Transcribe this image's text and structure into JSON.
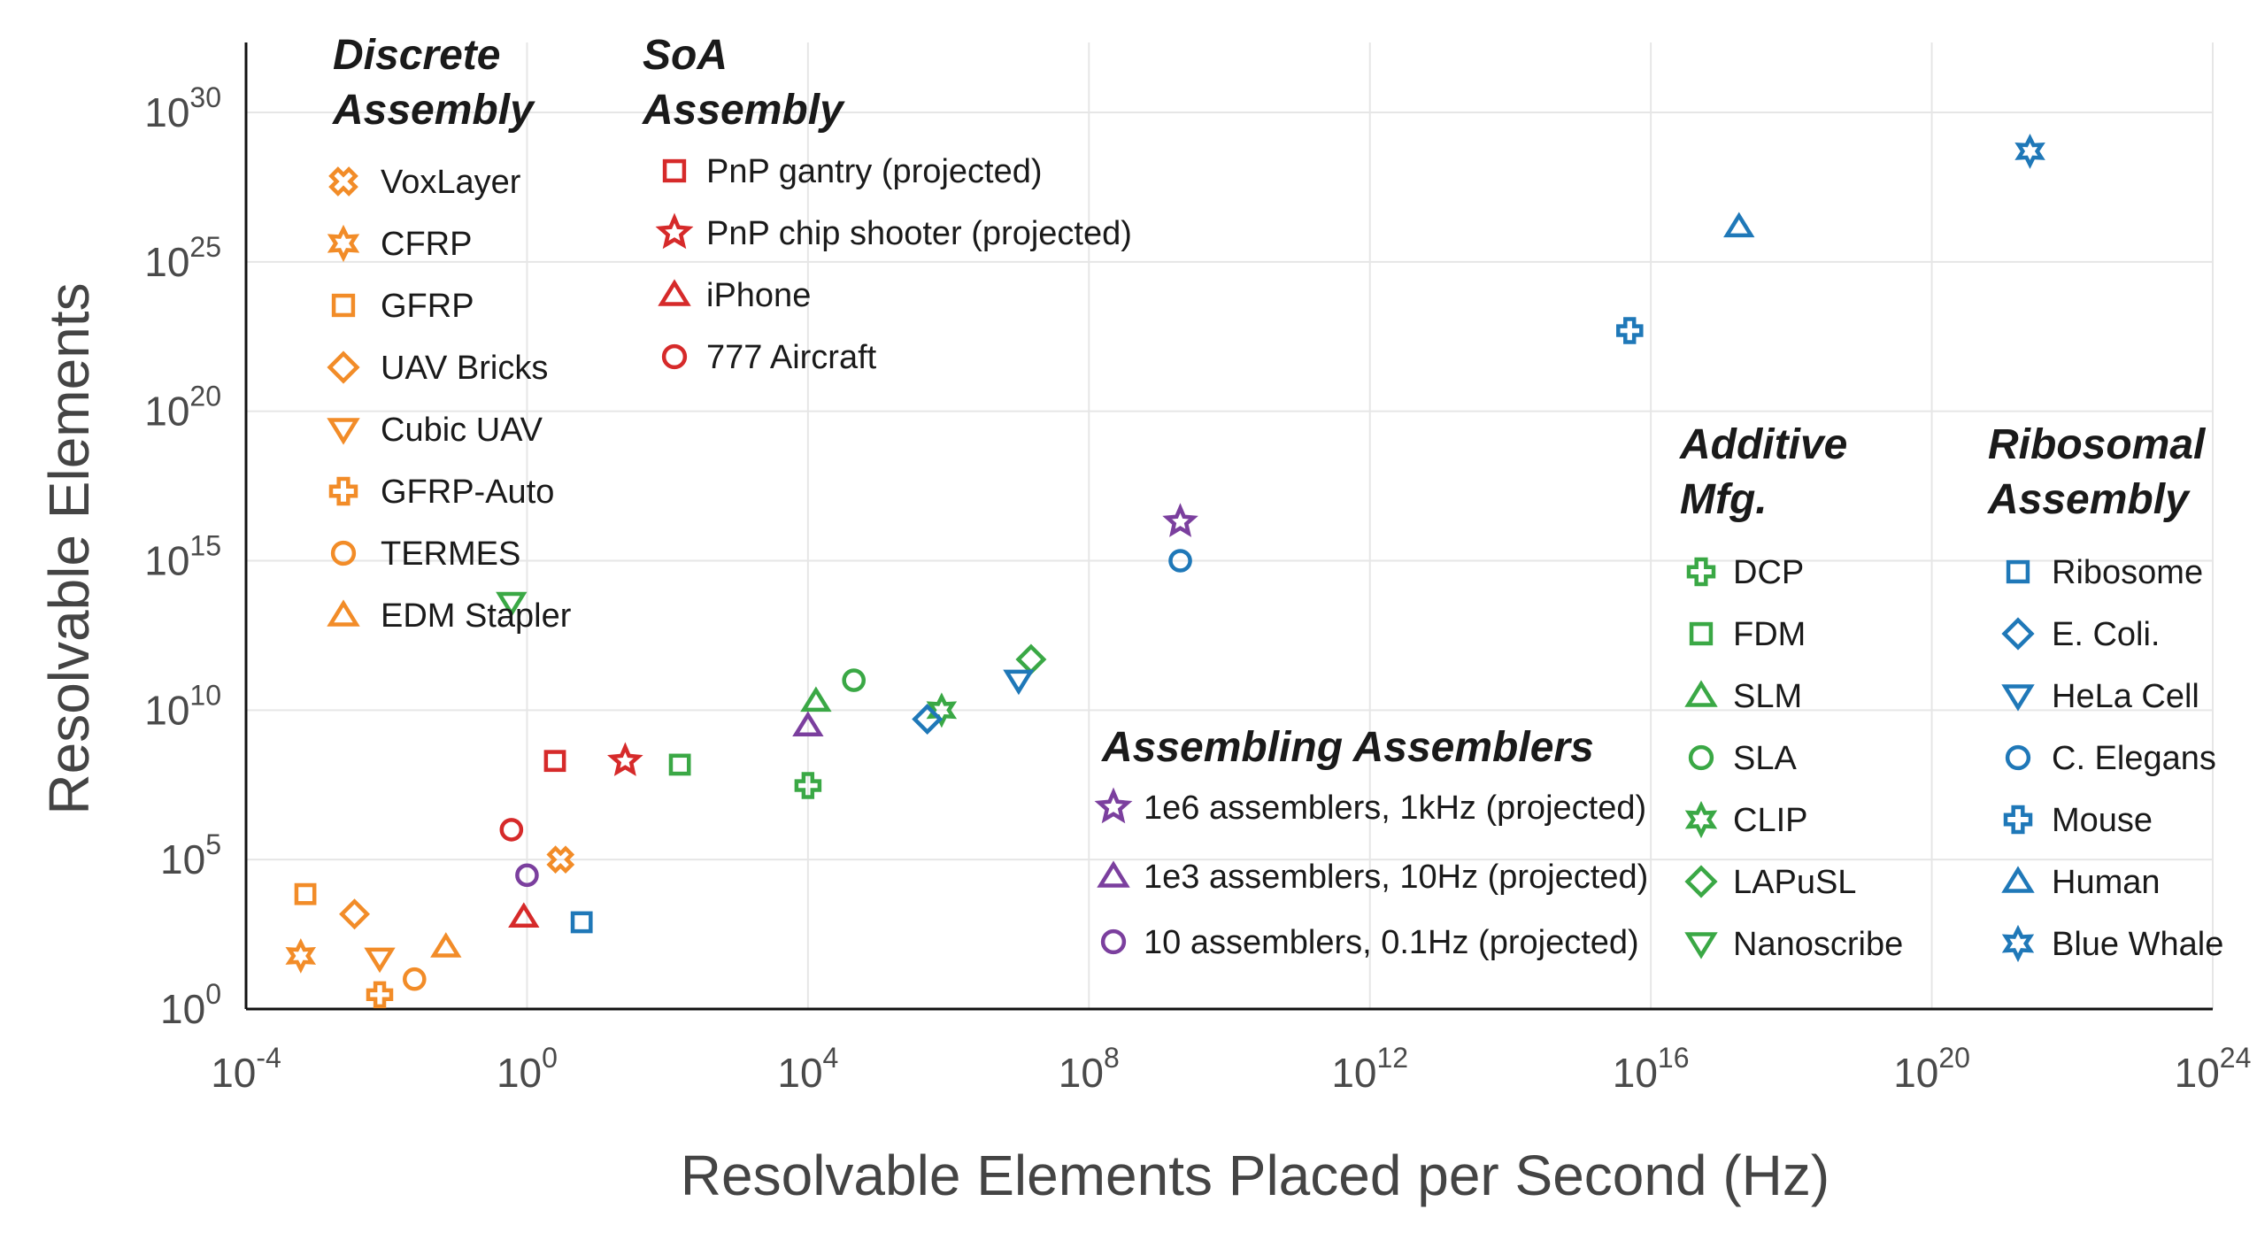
{
  "chart_data": {
    "type": "scatter",
    "xlabel": "Resolvable Elements Placed per Second (Hz)",
    "ylabel": "Resolvable Elements",
    "x_scale": "log",
    "y_scale": "log",
    "xlim": [
      0.0001,
      1e+24
    ],
    "ylim": [
      1,
      1e+30
    ],
    "x_ticks": [
      {
        "value": 0.0001,
        "base": "10",
        "exp": "-4"
      },
      {
        "value": 1.0,
        "base": "10",
        "exp": "0"
      },
      {
        "value": 10000.0,
        "base": "10",
        "exp": "4"
      },
      {
        "value": 100000000.0,
        "base": "10",
        "exp": "8"
      },
      {
        "value": 1000000000000.0,
        "base": "10",
        "exp": "12"
      },
      {
        "value": 1e+16,
        "base": "10",
        "exp": "16"
      },
      {
        "value": 1e+20,
        "base": "10",
        "exp": "20"
      },
      {
        "value": 1e+24,
        "base": "10",
        "exp": "24"
      }
    ],
    "y_ticks": [
      {
        "value": 1.0,
        "base": "10",
        "exp": "0"
      },
      {
        "value": 100000.0,
        "base": "10",
        "exp": "5"
      },
      {
        "value": 10000000000.0,
        "base": "10",
        "exp": "10"
      },
      {
        "value": 1000000000000000.0,
        "base": "10",
        "exp": "15"
      },
      {
        "value": 1e+20,
        "base": "10",
        "exp": "20"
      },
      {
        "value": 1e+25,
        "base": "10",
        "exp": "25"
      },
      {
        "value": 1e+30,
        "base": "10",
        "exp": "30"
      }
    ],
    "grid": true,
    "groups": [
      {
        "title_lines": [
          "Discrete",
          "Assembly"
        ],
        "color": "#f28c28",
        "series": [
          {
            "name": "VoxLayer",
            "marker": "x-cross",
            "x": 3,
            "y": 100000.0
          },
          {
            "name": "CFRP",
            "marker": "star6",
            "x": 0.0006,
            "y": 60
          },
          {
            "name": "GFRP",
            "marker": "square",
            "x": 0.0007,
            "y": 7000
          },
          {
            "name": "UAV Bricks",
            "marker": "diamond",
            "x": 0.0035,
            "y": 1500
          },
          {
            "name": "Cubic UAV",
            "marker": "tri-down",
            "x": 0.008,
            "y": 50
          },
          {
            "name": "GFRP-Auto",
            "marker": "plus",
            "x": 0.008,
            "y": 3
          },
          {
            "name": "TERMES",
            "marker": "circle",
            "x": 0.025,
            "y": 10
          },
          {
            "name": "EDM Stapler",
            "marker": "tri-up",
            "x": 0.07,
            "y": 120
          }
        ]
      },
      {
        "title_lines": [
          "SoA",
          "Assembly"
        ],
        "color": "#d62a2a",
        "series": [
          {
            "name": "PnP gantry (projected)",
            "marker": "square",
            "x": 2.5,
            "y": 200000000.0
          },
          {
            "name": "PnP chip shooter (projected)",
            "marker": "star5",
            "x": 25,
            "y": 200000000.0
          },
          {
            "name": "iPhone",
            "marker": "tri-up",
            "x": 0.9,
            "y": 1200
          },
          {
            "name": "777 Aircraft",
            "marker": "circle",
            "x": 0.6,
            "y": 1000000.0
          }
        ]
      },
      {
        "title_lines": [
          "Additive",
          "Mfg."
        ],
        "color": "#3aa845",
        "series": [
          {
            "name": "DCP",
            "marker": "plus",
            "x": 10000.0,
            "y": 30000000.0
          },
          {
            "name": "FDM",
            "marker": "square",
            "x": 150,
            "y": 150000000.0
          },
          {
            "name": "SLM",
            "marker": "tri-up",
            "x": 13000,
            "y": 20000000000.0
          },
          {
            "name": "SLA",
            "marker": "circle",
            "x": 45000,
            "y": 100000000000.0
          },
          {
            "name": "CLIP",
            "marker": "star6",
            "x": 800000.0,
            "y": 10000000000.0
          },
          {
            "name": "LAPuSL",
            "marker": "diamond",
            "x": 15000000.0,
            "y": 500000000000.0
          },
          {
            "name": "Nanoscribe",
            "marker": "tri-down",
            "x": 0.6,
            "y": 40000000000000.0
          }
        ]
      },
      {
        "title_lines": [
          "Ribosomal",
          "Assembly"
        ],
        "color": "#1f78b8",
        "series": [
          {
            "name": "Ribosome",
            "marker": "square",
            "x": 6,
            "y": 800
          },
          {
            "name": "E. Coli.",
            "marker": "diamond",
            "x": 500000.0,
            "y": 5000000000.0
          },
          {
            "name": "HeLa Cell",
            "marker": "tri-down",
            "x": 10000000.0,
            "y": 100000000000.0
          },
          {
            "name": "C. Elegans",
            "marker": "circle",
            "x": 2000000000.0,
            "y": 1000000000000000.0
          },
          {
            "name": "Mouse",
            "marker": "plus",
            "x": 5000000000000000.0,
            "y": 5e+22
          },
          {
            "name": "Human",
            "marker": "tri-up",
            "x": 1.8e+17,
            "y": 1.5e+26
          },
          {
            "name": "Blue Whale",
            "marker": "star6",
            "x": 2.5e+21,
            "y": 5e+28
          }
        ]
      },
      {
        "title_lines": [
          "Assembling Assemblers"
        ],
        "color": "#7b3f9e",
        "series": [
          {
            "name": "1e6 assemblers, 1kHz (projected)",
            "marker": "star5",
            "x": 2000000000.0,
            "y": 2e+16
          },
          {
            "name": "1e3 assemblers, 10Hz (projected)",
            "marker": "tri-up",
            "x": 10000.0,
            "y": 3000000000.0
          },
          {
            "name": "10 assemblers, 0.1Hz (projected)",
            "marker": "circle",
            "x": 1,
            "y": 30000.0
          }
        ]
      }
    ]
  }
}
